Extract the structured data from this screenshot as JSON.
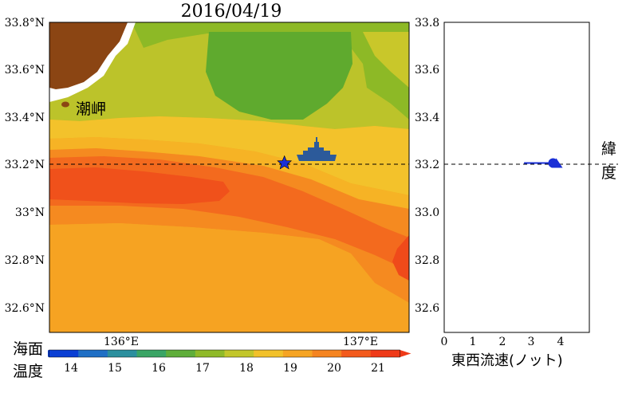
{
  "title": "2016/04/19",
  "map": {
    "lat_ticks": [
      "33.8°N",
      "33.6°N",
      "33.4°N",
      "33.2°N",
      "33°N",
      "32.8°N",
      "32.6°N"
    ],
    "lon_ticks": [
      "136°E",
      "137°E"
    ],
    "lat_range": [
      32.5,
      33.8
    ],
    "lon_range": [
      135.7,
      137.2
    ],
    "cape_label": "潮岬",
    "vessel_latitude": 33.21,
    "vessel_longitude": 136.68,
    "star_marker_color": "#1a2fd6",
    "land_color": "#8b4513",
    "ship_color": "#2c5a9a"
  },
  "colorbar": {
    "label_line1": "海面",
    "label_line2": "温度",
    "ticks": [
      "14",
      "15",
      "16",
      "17",
      "18",
      "19",
      "20",
      "21"
    ],
    "range": [
      13.5,
      21.5
    ],
    "colors": [
      "#0a3fd4",
      "#1f6fc5",
      "#2b8f9e",
      "#3aa565",
      "#5fae3a",
      "#8fba28",
      "#c2c62a",
      "#f2c12a",
      "#f6a423",
      "#f58420",
      "#f35a1c",
      "#ef3a18"
    ]
  },
  "chart_data": [
    {
      "type": "heatmap",
      "title": "2016/04/19",
      "xlabel": "",
      "ylabel": "",
      "x_ticks": [
        "136°E",
        "137°E"
      ],
      "y_ticks": [
        "33.8°N",
        "33.6°N",
        "33.4°N",
        "33.2°N",
        "33°N",
        "32.8°N",
        "32.6°N"
      ],
      "xlim": [
        135.7,
        137.2
      ],
      "ylim": [
        32.5,
        33.8
      ],
      "colorbar_label": "海面温度",
      "colorbar_ticks": [
        14,
        15,
        16,
        17,
        18,
        19,
        20,
        21
      ],
      "annotations": [
        "潮岬"
      ],
      "reference_line_latitude": 33.21
    },
    {
      "type": "scatter",
      "title": "",
      "xlabel": "東西流速(ノット)",
      "ylabel": "緯度",
      "x_ticks": [
        "0",
        "1",
        "2",
        "3",
        "4"
      ],
      "y_ticks": [
        "33.8",
        "33.6",
        "33.4",
        "33.2",
        "33.0",
        "32.8",
        "32.6"
      ],
      "xlim": [
        0,
        5
      ],
      "ylim": [
        32.5,
        33.8
      ],
      "grid": false,
      "reference_line_y": 33.21,
      "series": [
        {
          "values": [
            [
              3.75,
              33.21
            ]
          ]
        }
      ],
      "vector_from_x": 2.75
    }
  ],
  "current_panel": {
    "ylabel_line1": "緯",
    "ylabel_line2": "度",
    "xlabel": "東西流速(ノット)",
    "marker_color": "#1a2fd6"
  }
}
